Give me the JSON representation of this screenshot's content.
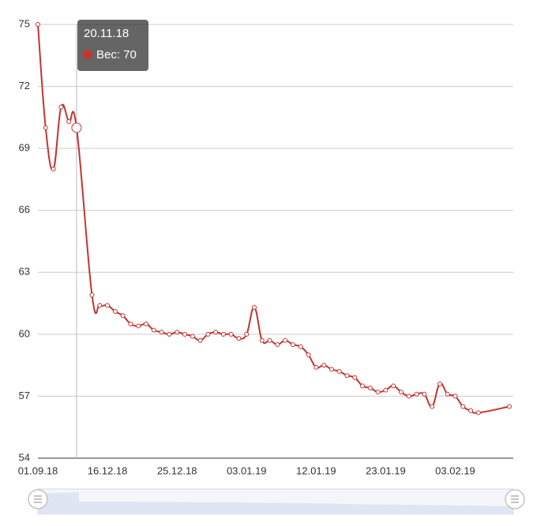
{
  "chart_data": {
    "type": "line",
    "categories": [
      "01.09.18",
      null,
      null,
      null,
      null,
      null,
      null,
      null,
      null,
      "16.12.18",
      null,
      null,
      null,
      null,
      null,
      null,
      null,
      null,
      "25.12.18",
      null,
      null,
      null,
      null,
      null,
      null,
      null,
      null,
      "03.01.19",
      null,
      null,
      null,
      null,
      null,
      null,
      null,
      null,
      "12.01.19",
      null,
      null,
      null,
      null,
      null,
      null,
      null,
      null,
      "23.01.19",
      null,
      null,
      null,
      null,
      null,
      null,
      null,
      null,
      "03.02.19",
      null,
      null,
      null,
      null,
      null,
      null,
      null
    ],
    "series": [
      {
        "name": "Вес",
        "color": "#c23531",
        "values": [
          75,
          70,
          68,
          71,
          70.3,
          70,
          null,
          61.9,
          61.4,
          61.4,
          61.1,
          60.9,
          60.5,
          60.4,
          60.5,
          60.2,
          60.1,
          60.0,
          60.1,
          60.0,
          59.9,
          59.7,
          60.0,
          60.1,
          60.0,
          60.0,
          59.8,
          60.0,
          61.3,
          59.7,
          59.7,
          59.5,
          59.7,
          59.5,
          59.4,
          59.0,
          58.4,
          58.5,
          58.3,
          58.2,
          58.0,
          57.9,
          57.5,
          57.4,
          57.2,
          57.3,
          57.5,
          57.2,
          57.0,
          57.1,
          57.1,
          56.5,
          57.6,
          57.1,
          57.0,
          56.5,
          56.3,
          56.2,
          null,
          null,
          null,
          56.5
        ]
      }
    ],
    "ylim": [
      54,
      75
    ],
    "yticks": [
      54,
      57,
      60,
      63,
      66,
      69,
      72,
      75
    ],
    "grid": true,
    "smooth": true,
    "connect_nulls": true,
    "tooltip": {
      "title": "20.11.18",
      "text": "Вес: 70"
    }
  }
}
